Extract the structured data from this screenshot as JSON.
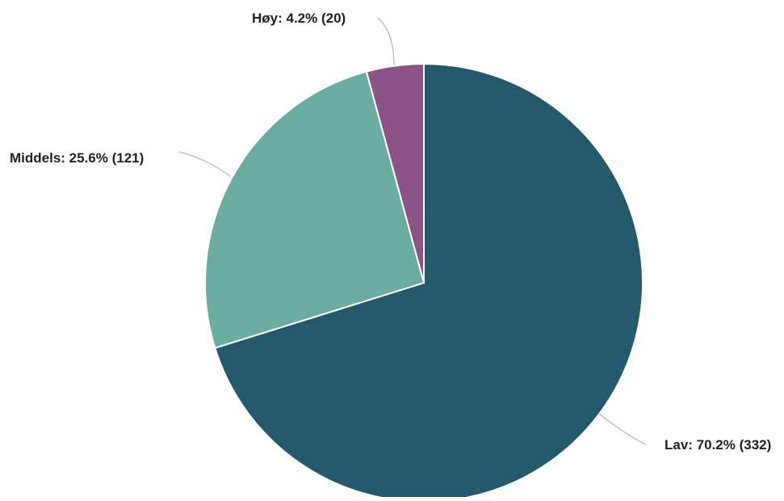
{
  "chart_data": {
    "type": "pie",
    "title": "",
    "slices": [
      {
        "name": "Lav",
        "count": 332,
        "percent": 70.2,
        "label": "Lav: 70.2% (332)",
        "color": "#24586b"
      },
      {
        "name": "Middels",
        "count": 121,
        "percent": 25.6,
        "label": "Middels: 25.6% (121)",
        "color": "#6baca1"
      },
      {
        "name": "Høy",
        "count": 20,
        "percent": 4.2,
        "label": "Høy: 4.2% (20)",
        "color": "#8c5386"
      }
    ],
    "legend": "none"
  }
}
